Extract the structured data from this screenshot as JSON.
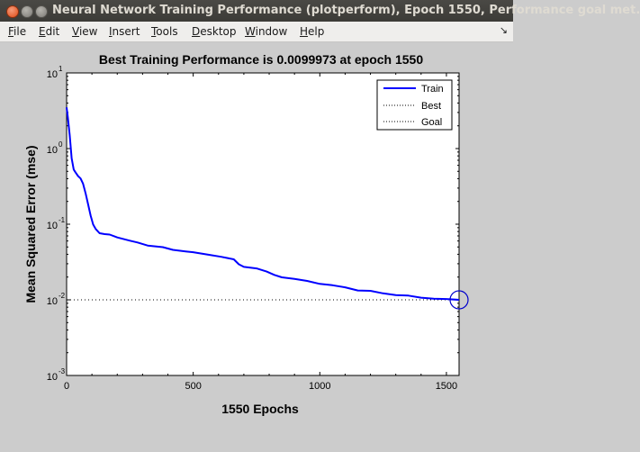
{
  "window": {
    "title": "Neural Network Training Performance (plotperform), Epoch 1550, Performance goal met."
  },
  "menubar": {
    "items": [
      {
        "label": "File",
        "u": "F",
        "rest": "ile"
      },
      {
        "label": "Edit",
        "u": "E",
        "rest": "dit"
      },
      {
        "label": "View",
        "u": "V",
        "rest": "iew"
      },
      {
        "label": "Insert",
        "u": "I",
        "rest": "nsert"
      },
      {
        "label": "Tools",
        "u": "T",
        "rest": "ools"
      },
      {
        "label": "Desktop",
        "u": "D",
        "rest": "esktop"
      },
      {
        "label": "Window",
        "u": "W",
        "rest": "indow"
      },
      {
        "label": "Help",
        "u": "H",
        "rest": "elp"
      }
    ],
    "dock_icon": "dock-arrow-icon"
  },
  "chart_data": {
    "type": "line",
    "title": "Best Training Performance is 0.0099973 at epoch 1550",
    "xlabel": "1550 Epochs",
    "ylabel": "Mean Squared Error  (mse)",
    "xlim": [
      0,
      1550
    ],
    "ylim": [
      0.001,
      10
    ],
    "yscale": "log",
    "xticks": [
      0,
      500,
      1000,
      1500
    ],
    "xtick_labels": [
      "0",
      "500",
      "1000",
      "1500"
    ],
    "yticks": [
      {
        "value": 0.001,
        "base": "10",
        "exp": "-3"
      },
      {
        "value": 0.01,
        "base": "10",
        "exp": "-2"
      },
      {
        "value": 0.1,
        "base": "10",
        "exp": "-1"
      },
      {
        "value": 1,
        "base": "10",
        "exp": "0"
      },
      {
        "value": 10,
        "base": "10",
        "exp": "1"
      }
    ],
    "grid": false,
    "legend_position": "top-right",
    "series": [
      {
        "name": "Train",
        "color": "#0000ff",
        "style": "solid",
        "x": [
          0,
          5,
          12,
          20,
          28,
          35,
          45,
          55,
          65,
          75,
          85,
          95,
          105,
          115,
          130,
          150,
          170,
          200,
          250,
          280,
          320,
          380,
          420,
          470,
          500,
          560,
          610,
          660,
          680,
          700,
          750,
          790,
          820,
          850,
          900,
          950,
          1000,
          1050,
          1100,
          1150,
          1200,
          1250,
          1300,
          1350,
          1400,
          1450,
          1500,
          1550
        ],
        "y": [
          3.5,
          2.6,
          1.5,
          0.75,
          0.53,
          0.48,
          0.44,
          0.4,
          0.34,
          0.26,
          0.18,
          0.13,
          0.1,
          0.085,
          0.077,
          0.074,
          0.072,
          0.068,
          0.06,
          0.057,
          0.053,
          0.049,
          0.046,
          0.044,
          0.042,
          0.04,
          0.037,
          0.034,
          0.03,
          0.027,
          0.026,
          0.024,
          0.021,
          0.02,
          0.019,
          0.0175,
          0.0165,
          0.0155,
          0.0145,
          0.0135,
          0.013,
          0.0122,
          0.0117,
          0.0112,
          0.0108,
          0.0104,
          0.0101,
          0.0099973
        ]
      },
      {
        "name": "Best",
        "color": "#000000",
        "style": "dotted"
      },
      {
        "name": "Goal",
        "color": "#000000",
        "style": "dotted",
        "value": 0.01
      }
    ],
    "best_marker": {
      "x": 1550,
      "y": 0.0099973
    }
  }
}
